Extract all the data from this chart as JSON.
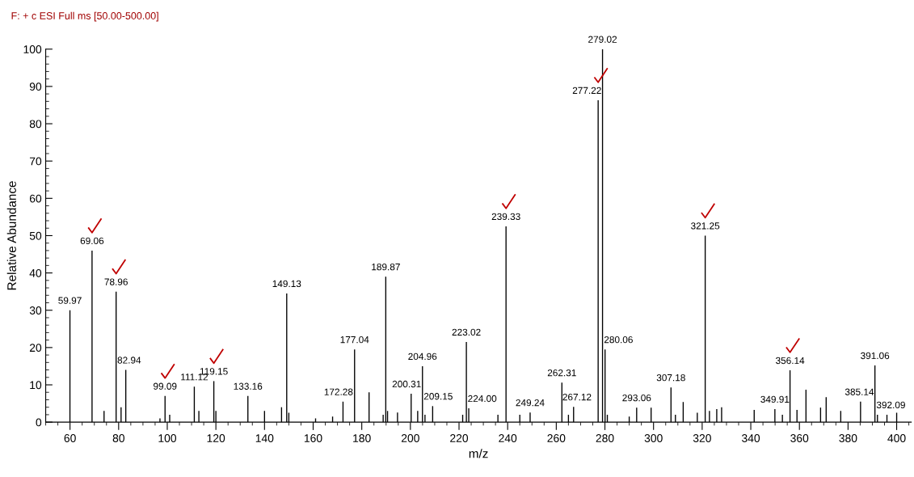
{
  "chart_data": {
    "type": "bar",
    "title": "F: + c ESI Full ms [50.00-500.00]",
    "xlabel": "m/z",
    "ylabel": "Relative Abundance",
    "x": [
      59.97,
      69.06,
      74,
      78.96,
      81,
      82.94,
      97,
      99.09,
      101,
      111.12,
      113,
      119.15,
      120,
      133.16,
      140,
      147,
      149.13,
      150,
      161,
      168,
      172.28,
      177.04,
      183,
      188.8,
      189.87,
      190.6,
      194.7,
      200.31,
      203,
      204.96,
      206,
      209.15,
      221.5,
      223.02,
      224.0,
      236,
      239.33,
      245,
      249.24,
      262.31,
      265,
      267.12,
      277.22,
      279.02,
      280.06,
      281,
      290,
      293.06,
      299,
      307.18,
      309,
      312.2,
      318,
      321.25,
      323,
      326,
      328,
      341.4,
      349.91,
      353,
      356.14,
      359,
      362.7,
      368.7,
      371,
      377,
      385.14,
      391.06,
      392.09,
      396,
      400
    ],
    "values": [
      30,
      46,
      3,
      35,
      4,
      14,
      1,
      7,
      2,
      9.5,
      3,
      11,
      3,
      7,
      3,
      4,
      34.5,
      2.5,
      1,
      1.5,
      5.5,
      19.5,
      8,
      2,
      39,
      3,
      2.6,
      7.6,
      3,
      15,
      2,
      4.3,
      2,
      21.5,
      3.7,
      2,
      52.5,
      2,
      2.6,
      10.6,
      2,
      4.1,
      86.3,
      100,
      19.5,
      2,
      1.5,
      3.9,
      3.9,
      9.3,
      2,
      5.4,
      2.5,
      50,
      3,
      3.5,
      4,
      3.3,
      3.5,
      2,
      13.9,
      3.3,
      8.7,
      3.9,
      6.7,
      3,
      5.5,
      15.2,
      2,
      2,
      2.5
    ],
    "color": "#000000",
    "xlim": [
      50,
      406
    ],
    "xticks": [
      60,
      80,
      100,
      120,
      140,
      160,
      180,
      200,
      220,
      240,
      260,
      280,
      300,
      320,
      340,
      360,
      380,
      400
    ],
    "ylim": [
      0,
      100
    ],
    "yticks": [
      0,
      10,
      20,
      30,
      40,
      50,
      60,
      70,
      80,
      90,
      100
    ],
    "grid": false,
    "legend": false,
    "annotations": [
      {
        "text": "59.97",
        "x": 59.97,
        "y": 30
      },
      {
        "text": "69.06",
        "x": 69.06,
        "y": 46
      },
      {
        "text": "78.96",
        "x": 78.96,
        "y": 35
      },
      {
        "text": "82.94",
        "x": 82.94,
        "y": 14
      },
      {
        "text": "99.09",
        "x": 99.09,
        "y": 7
      },
      {
        "text": "111.12",
        "x": 111.12,
        "y": 9.5
      },
      {
        "text": "119.15",
        "x": 119.15,
        "y": 11
      },
      {
        "text": "133.16",
        "x": 133.16,
        "y": 7
      },
      {
        "text": "149.13",
        "x": 149.13,
        "y": 34.5
      },
      {
        "text": "172.28",
        "x": 172.28,
        "y": 5.5
      },
      {
        "text": "177.04",
        "x": 177.04,
        "y": 19.5
      },
      {
        "text": "189.87",
        "x": 189.87,
        "y": 39
      },
      {
        "text": "200.31",
        "x": 200.31,
        "y": 7.6
      },
      {
        "text": "204.96",
        "x": 204.96,
        "y": 15
      },
      {
        "text": "209.15",
        "x": 209.15,
        "y": 4.3
      },
      {
        "text": "223.02",
        "x": 223.02,
        "y": 21.5
      },
      {
        "text": "224.00",
        "x": 224.0,
        "y": 3.7
      },
      {
        "text": "239.33",
        "x": 239.33,
        "y": 52.5
      },
      {
        "text": "249.24",
        "x": 249.24,
        "y": 2.6
      },
      {
        "text": "262.31",
        "x": 262.31,
        "y": 10.6
      },
      {
        "text": "267.12",
        "x": 267.12,
        "y": 4.1
      },
      {
        "text": "277.22",
        "x": 277.22,
        "y": 86.3
      },
      {
        "text": "279.02",
        "x": 279.02,
        "y": 100
      },
      {
        "text": "280.06",
        "x": 280.06,
        "y": 19.5
      },
      {
        "text": "293.06",
        "x": 293.06,
        "y": 3.9
      },
      {
        "text": "307.18",
        "x": 307.18,
        "y": 9.3
      },
      {
        "text": "321.25",
        "x": 321.25,
        "y": 50
      },
      {
        "text": "349.91",
        "x": 349.91,
        "y": 3.5
      },
      {
        "text": "356.14",
        "x": 356.14,
        "y": 13.9
      },
      {
        "text": "385.14",
        "x": 385.14,
        "y": 5.5
      },
      {
        "text": "391.06",
        "x": 391.06,
        "y": 15.2
      },
      {
        "text": "392.09",
        "x": 392.09,
        "y": 2
      }
    ]
  }
}
